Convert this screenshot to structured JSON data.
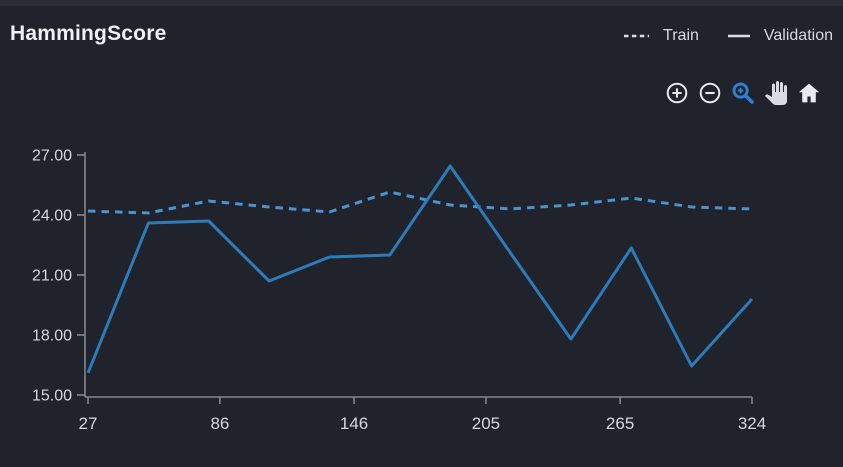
{
  "header": {
    "title": "HammingScore"
  },
  "legend": {
    "train_label": "Train",
    "validation_label": "Validation",
    "marker_color": "#dcdde2"
  },
  "toolbar": {
    "icons": [
      "zoom-in",
      "zoom-out",
      "box-zoom",
      "pan",
      "home"
    ],
    "active_icon": "box-zoom",
    "icon_color": "#e8e9ed",
    "hand_color": "#d9dbe1",
    "active_color": "#2e80d3"
  },
  "chart_data": {
    "type": "line",
    "title": "HammingScore",
    "xlabel": "",
    "ylabel": "",
    "xlim": [
      27,
      324
    ],
    "ylim": [
      15,
      27
    ],
    "grid": false,
    "legend_position": "top-right",
    "x_ticks": [
      27,
      86,
      146,
      205,
      265,
      324
    ],
    "y_tick_labels": [
      "27.00",
      "24.00",
      "21.00",
      "18.00",
      "15.00"
    ],
    "x": [
      27,
      54,
      81,
      108,
      135,
      162,
      189,
      216,
      243,
      270,
      297,
      324
    ],
    "series": [
      {
        "name": "Train",
        "style": "dashed",
        "color": "#4a93cd",
        "values": [
          24.2,
          24.1,
          24.7,
          24.4,
          24.15,
          25.15,
          24.5,
          24.3,
          24.5,
          24.85,
          24.4,
          24.3
        ]
      },
      {
        "name": "Validation",
        "style": "solid",
        "color": "#2d7cba",
        "values": [
          16.1,
          23.6,
          23.7,
          20.7,
          21.9,
          22.0,
          26.45,
          22.1,
          17.8,
          22.35,
          16.45,
          19.8
        ]
      }
    ],
    "axis_color": "#84868f",
    "tick_label_color": "#d6d7dc"
  }
}
